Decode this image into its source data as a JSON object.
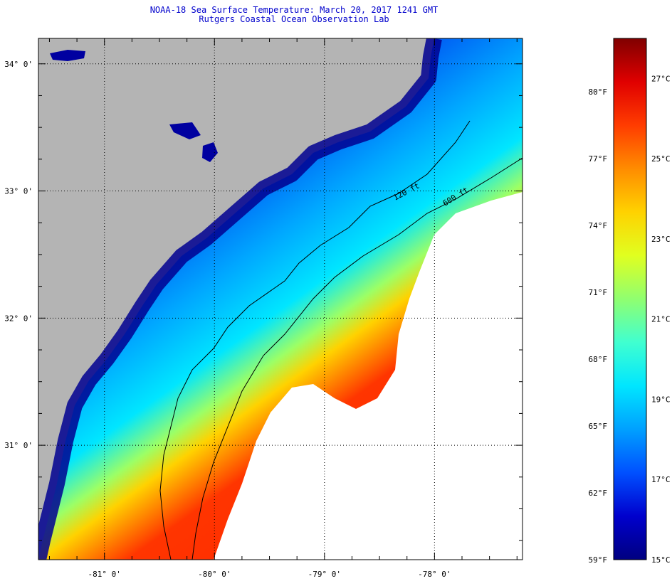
{
  "header": {
    "title": "NOAA-18 Sea Surface Temperature:  March 20, 2017 1241 GMT",
    "subtitle": "Rutgers Coastal Ocean Observation Lab"
  },
  "map": {
    "lon_range": [
      -81.6,
      -77.2
    ],
    "lat_range": [
      30.1,
      34.2
    ],
    "lon_ticks": [
      {
        "value": -81,
        "label": "-81° 0'"
      },
      {
        "value": -80,
        "label": "-80° 0'"
      },
      {
        "value": -79,
        "label": "-79° 0'"
      },
      {
        "value": -78,
        "label": "-78° 0'"
      }
    ],
    "lat_ticks": [
      {
        "value": 34,
        "label": "34° 0'"
      },
      {
        "value": 33,
        "label": "33° 0'"
      },
      {
        "value": 32,
        "label": "32° 0'"
      },
      {
        "value": 31,
        "label": "31° 0'"
      }
    ],
    "contours": [
      {
        "label": "120 ft"
      },
      {
        "label": "600 ft"
      }
    ],
    "colors": {
      "land": "#b4b4b4",
      "cloud": "#ffffff",
      "gridline": "#000000"
    }
  },
  "colorbar": {
    "min_f": 59,
    "max_f": 82.4,
    "fahrenheit_ticks": [
      {
        "value": 80,
        "label": "80°F"
      },
      {
        "value": 77,
        "label": "77°F"
      },
      {
        "value": 74,
        "label": "74°F"
      },
      {
        "value": 71,
        "label": "71°F"
      },
      {
        "value": 68,
        "label": "68°F"
      },
      {
        "value": 65,
        "label": "65°F"
      },
      {
        "value": 62,
        "label": "62°F"
      },
      {
        "value": 59,
        "label": "59°F"
      }
    ],
    "celsius_ticks": [
      {
        "value": 27,
        "label": "27°C"
      },
      {
        "value": 25,
        "label": "25°C"
      },
      {
        "value": 23,
        "label": "23°C"
      },
      {
        "value": 21,
        "label": "21°C"
      },
      {
        "value": 19,
        "label": "19°C"
      },
      {
        "value": 17,
        "label": "17°C"
      },
      {
        "value": 15,
        "label": "15°C"
      }
    ],
    "gradient": [
      "#000080",
      "#0000cd",
      "#0050ff",
      "#00a0ff",
      "#00e6ff",
      "#40ffd0",
      "#90ff70",
      "#e0ff20",
      "#ffd200",
      "#ff8c00",
      "#ff3c00",
      "#e00000",
      "#800000"
    ]
  }
}
